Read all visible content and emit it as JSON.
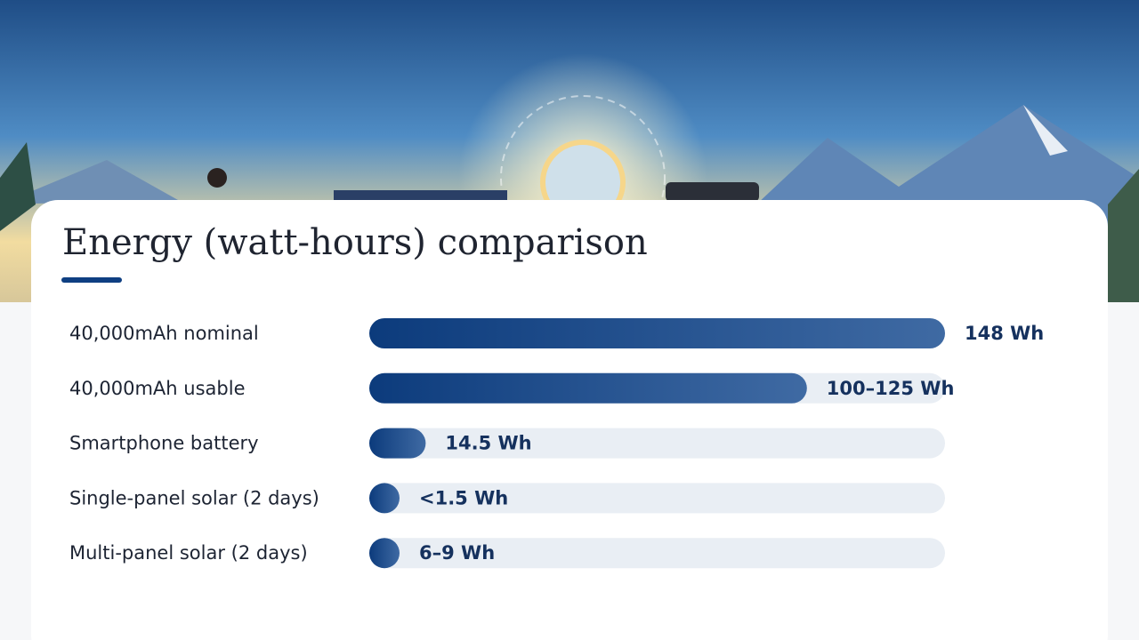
{
  "chart_data": {
    "type": "bar",
    "orientation": "horizontal",
    "title": "Energy (watt-hours) comparison",
    "categories": [
      "40,000mAh nominal",
      "40,000mAh usable",
      "Smartphone battery",
      "Single-panel solar (2 days)",
      "Multi-panel solar (2 days)"
    ],
    "values": [
      148,
      112.5,
      14.5,
      1.5,
      7.5
    ],
    "value_labels": [
      "148 Wh",
      "100–125 Wh",
      "14.5 Wh",
      "<1.5 Wh",
      "6–9 Wh"
    ],
    "color": "#0f3f82",
    "xlim": [
      0,
      148
    ]
  }
}
